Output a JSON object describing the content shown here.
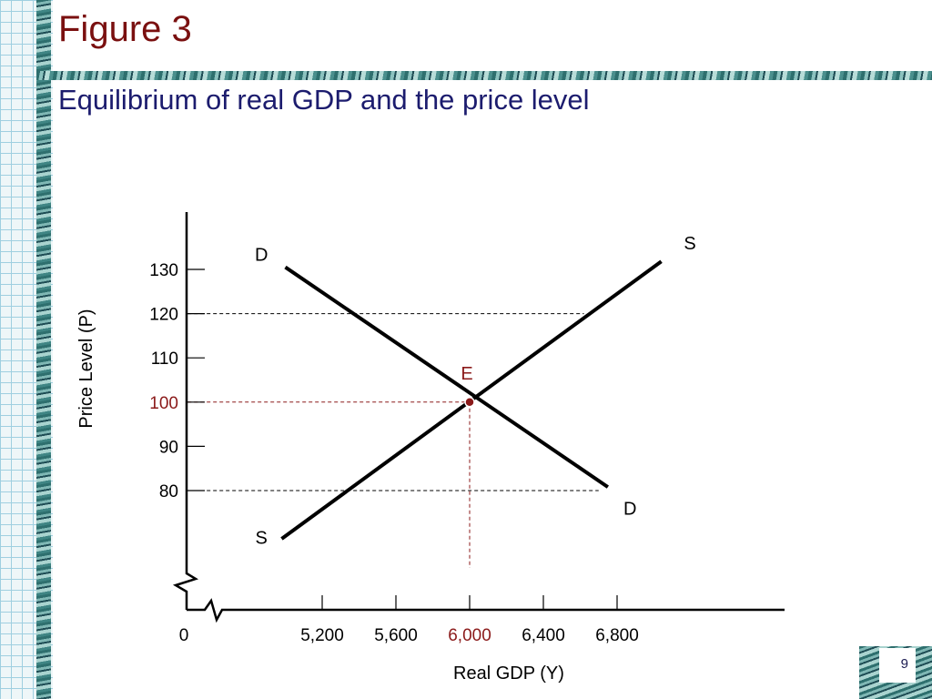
{
  "slide": {
    "figure_title": "Figure 3",
    "subtitle": "Equilibrium of real GDP and the price level",
    "page_number": "9"
  },
  "colors": {
    "title": "#7a1010",
    "subtitle": "#1c1c6e",
    "highlight": "#8b1a1a",
    "curve": "#000000"
  },
  "chart_data": {
    "type": "line",
    "xlabel": "Real GDP (Y)",
    "ylabel": "Price Level (P)",
    "x_ticks": [
      "5,200",
      "5,600",
      "6,000",
      "6,400",
      "6,800"
    ],
    "x_tick_values": [
      5200,
      5600,
      6000,
      6400,
      6800
    ],
    "x_origin_label": "0",
    "y_ticks": [
      "80",
      "90",
      "100",
      "110",
      "120",
      "130"
    ],
    "y_tick_values": [
      80,
      90,
      100,
      110,
      120,
      130
    ],
    "highlight_x": "6,000",
    "highlight_y": "100",
    "axis_breaks": true,
    "series": [
      {
        "name": "D",
        "points": [
          [
            5000,
            130.5
          ],
          [
            6750,
            80.8
          ]
        ]
      },
      {
        "name": "S",
        "points": [
          [
            4980,
            69.1
          ],
          [
            7040,
            131.8
          ]
        ]
      }
    ],
    "curve_labels": [
      {
        "text": "D",
        "x": 4870,
        "y": 132
      },
      {
        "text": "D",
        "x": 6870,
        "y": 74.5
      },
      {
        "text": "S",
        "x": 4870,
        "y": 68
      },
      {
        "text": "S",
        "x": 7195,
        "y": 134.5
      }
    ],
    "equilibrium": {
      "label": "E",
      "x": 6000,
      "y": 100
    },
    "guide_lines": [
      {
        "from": [
          4470,
          120
        ],
        "to": [
          6620,
          120
        ]
      },
      {
        "from": [
          4470,
          80
        ],
        "to": [
          6700,
          80
        ]
      },
      {
        "from": [
          4470,
          100
        ],
        "to": [
          6000,
          100
        ]
      },
      {
        "from": [
          6000,
          100
        ],
        "to": [
          6000,
          62.5
        ]
      }
    ]
  }
}
